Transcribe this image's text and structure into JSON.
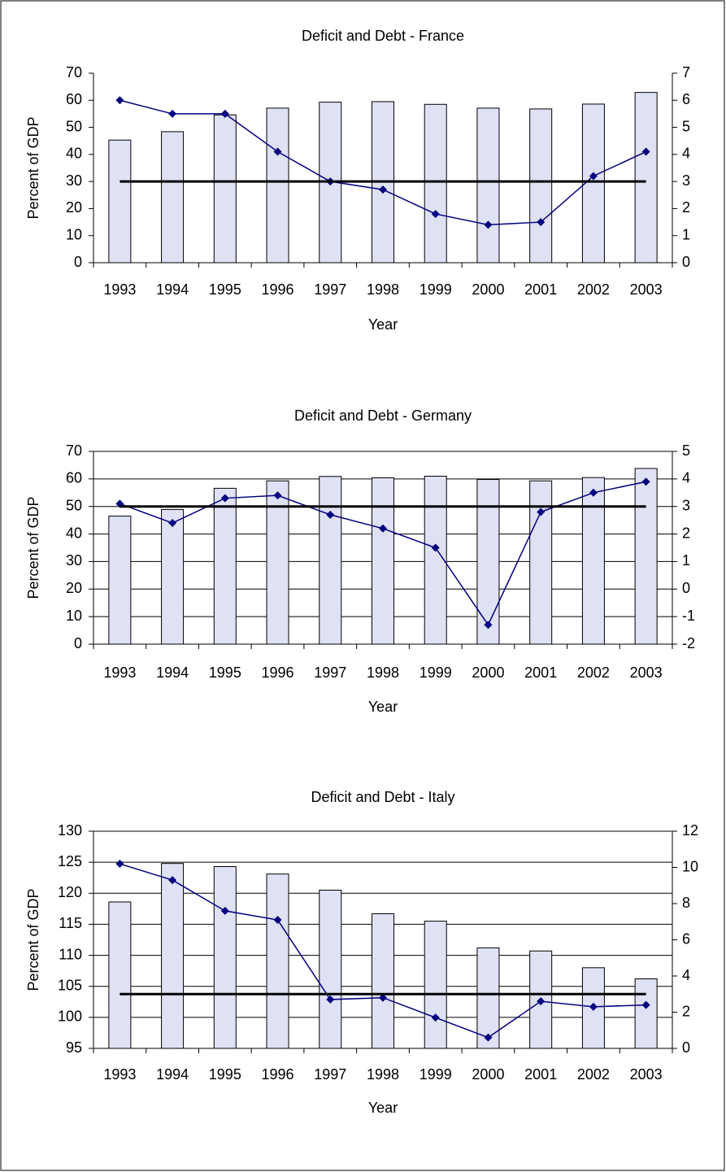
{
  "chart_data": [
    {
      "type": "bar",
      "title": "Deficit and Debt - France",
      "xlabel": "Year",
      "ylabel": "Percent of GDP",
      "categories": [
        "1993",
        "1994",
        "1995",
        "1996",
        "1997",
        "1998",
        "1999",
        "2000",
        "2001",
        "2002",
        "2003"
      ],
      "ylim": [
        0,
        70
      ],
      "yticks": [
        0,
        10,
        20,
        30,
        40,
        50,
        60,
        70
      ],
      "y2lim": [
        0,
        7
      ],
      "y2ticks": [
        0,
        1,
        2,
        3,
        4,
        5,
        6,
        7
      ],
      "grid": false,
      "series": [
        {
          "type": "bar",
          "color": "#dfe1f4",
          "values": [
            45.3,
            48.4,
            54.6,
            57.1,
            59.3,
            59.5,
            58.5,
            57.1,
            56.8,
            58.6,
            62.9
          ]
        },
        {
          "type": "line",
          "axis": "y2",
          "color": "#000080",
          "marker": "diamond",
          "values": [
            6.0,
            5.5,
            5.5,
            4.1,
            3.0,
            2.7,
            1.8,
            1.4,
            1.5,
            3.2,
            4.1
          ]
        },
        {
          "type": "line",
          "axis": "y2",
          "color": "#000000",
          "values": [
            3,
            3,
            3,
            3,
            3,
            3,
            3,
            3,
            3,
            3,
            3
          ]
        }
      ]
    },
    {
      "type": "bar",
      "title": "Deficit and Debt - Germany",
      "xlabel": "Year",
      "ylabel": "Percent of GDP",
      "categories": [
        "1993",
        "1994",
        "1995",
        "1996",
        "1997",
        "1998",
        "1999",
        "2000",
        "2001",
        "2002",
        "2003"
      ],
      "ylim": [
        0,
        70
      ],
      "yticks": [
        0,
        10,
        20,
        30,
        40,
        50,
        60,
        70
      ],
      "y2lim": [
        -2,
        5
      ],
      "y2ticks": [
        -2,
        -1,
        0,
        1,
        2,
        3,
        4,
        5
      ],
      "grid": true,
      "series": [
        {
          "type": "bar",
          "color": "#dfe1f4",
          "values": [
            46.5,
            48.9,
            56.6,
            59.3,
            60.9,
            60.4,
            61.0,
            59.8,
            59.3,
            60.5,
            63.8
          ]
        },
        {
          "type": "line",
          "axis": "y2",
          "color": "#000080",
          "marker": "diamond",
          "values": [
            3.1,
            2.4,
            3.3,
            3.4,
            2.7,
            2.2,
            1.5,
            -1.3,
            2.8,
            3.5,
            3.9
          ]
        },
        {
          "type": "line",
          "axis": "y2",
          "color": "#000000",
          "values": [
            3,
            3,
            3,
            3,
            3,
            3,
            3,
            3,
            3,
            3,
            3
          ]
        }
      ]
    },
    {
      "type": "bar",
      "title": "Deficit and Debt - Italy",
      "xlabel": "Year",
      "ylabel": "Percent of GDP",
      "categories": [
        "1993",
        "1994",
        "1995",
        "1996",
        "1997",
        "1998",
        "1999",
        "2000",
        "2001",
        "2002",
        "2003"
      ],
      "ylim": [
        95,
        130
      ],
      "yticks": [
        95,
        100,
        105,
        110,
        115,
        120,
        125,
        130
      ],
      "y2lim": [
        0,
        12
      ],
      "y2ticks": [
        0,
        2,
        4,
        6,
        8,
        10,
        12
      ],
      "grid": true,
      "series": [
        {
          "type": "bar",
          "color": "#dfe1f4",
          "values": [
            118.6,
            124.8,
            124.3,
            123.1,
            120.5,
            116.7,
            115.5,
            111.2,
            110.7,
            108.0,
            106.2
          ]
        },
        {
          "type": "line",
          "axis": "y2",
          "color": "#000080",
          "marker": "diamond",
          "values": [
            10.2,
            9.3,
            7.6,
            7.1,
            2.7,
            2.8,
            1.7,
            0.6,
            2.6,
            2.3,
            2.4
          ]
        },
        {
          "type": "line",
          "axis": "y2",
          "color": "#000000",
          "values": [
            3,
            3,
            3,
            3,
            3,
            3,
            3,
            3,
            3,
            3,
            3
          ]
        }
      ]
    }
  ]
}
